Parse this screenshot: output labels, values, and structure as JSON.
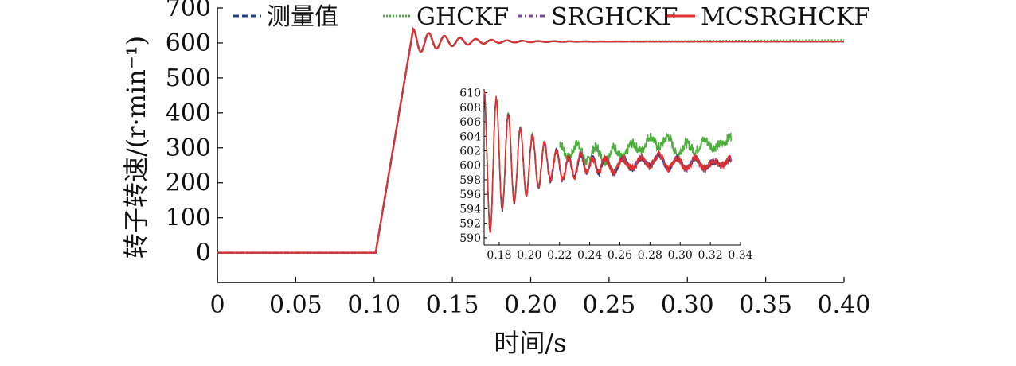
{
  "chart_data": {
    "type": "line",
    "xlabel": "时间/s",
    "ylabel": "转子转速/(r·min⁻¹)",
    "xlim": [
      0,
      0.4
    ],
    "ylim": [
      -85,
      700
    ],
    "x_ticks": [
      "0",
      "0.05",
      "0.10",
      "0.15",
      "0.20",
      "0.25",
      "0.30",
      "0.35",
      "0.40"
    ],
    "x_tick_values": [
      0,
      0.05,
      0.1,
      0.15,
      0.2,
      0.25,
      0.3,
      0.35,
      0.4
    ],
    "y_ticks": [
      "0",
      "100",
      "200",
      "300",
      "400",
      "500",
      "600",
      "700"
    ],
    "y_tick_values": [
      0,
      100,
      200,
      300,
      400,
      500,
      600,
      700
    ],
    "legend_position": "top",
    "grid": false,
    "series": [
      {
        "name": "测量值",
        "color": "#1f3f8f",
        "style": "dashed"
      },
      {
        "name": "GHCKF",
        "color": "#4caf3c",
        "style": "dotted"
      },
      {
        "name": "SRGHCKF",
        "color": "#7a4a9a",
        "style": "dashdot"
      },
      {
        "name": "MCSRGHCKF",
        "color": "#e03030",
        "style": "solid"
      }
    ],
    "main_curve": {
      "x": [
        0,
        0.05,
        0.1,
        0.101,
        0.125,
        0.13,
        0.135,
        0.14,
        0.145,
        0.15,
        0.16,
        0.17,
        0.18,
        0.2,
        0.25,
        0.3,
        0.35,
        0.4
      ],
      "y": [
        0,
        0,
        0,
        0,
        640,
        610,
        628,
        607,
        620,
        604,
        614,
        603,
        610,
        603,
        604,
        603,
        604,
        604
      ],
      "ghckf_end_y": 608
    },
    "inset": {
      "xlim": [
        0.17,
        0.34
      ],
      "ylim": [
        589,
        610.5
      ],
      "x_ticks": [
        "0.18",
        "0.20",
        "0.22",
        "0.24",
        "0.26",
        "0.28",
        "0.30",
        "0.32",
        "0.34"
      ],
      "x_tick_values": [
        0.18,
        0.2,
        0.22,
        0.24,
        0.26,
        0.28,
        0.3,
        0.32,
        0.34
      ],
      "y_ticks": [
        "590",
        "592",
        "594",
        "596",
        "598",
        "600",
        "602",
        "604",
        "606",
        "608",
        "610"
      ],
      "y_tick_values": [
        590,
        592,
        594,
        596,
        598,
        600,
        602,
        604,
        606,
        608,
        610
      ],
      "filtered_curve": {
        "x": [
          0.17,
          0.174,
          0.178,
          0.182,
          0.186,
          0.19,
          0.194,
          0.198,
          0.202,
          0.206,
          0.21,
          0.214,
          0.218,
          0.222,
          0.226,
          0.23,
          0.234,
          0.238,
          0.242,
          0.246,
          0.25,
          0.256,
          0.262,
          0.268,
          0.274,
          0.28,
          0.286,
          0.292,
          0.298,
          0.304,
          0.31,
          0.316,
          0.322,
          0.328,
          0.334
        ],
        "y": [
          610,
          591,
          609,
          594,
          607,
          595,
          605,
          596,
          604,
          597,
          603,
          598,
          602,
          598,
          601,
          598.5,
          601.5,
          599,
          601,
          599,
          601,
          599,
          601,
          599.5,
          601,
          600,
          601.5,
          599.5,
          601,
          599.5,
          601,
          599.5,
          600.5,
          600,
          601
        ]
      },
      "ghckf_curve": {
        "x": [
          0.22,
          0.226,
          0.232,
          0.238,
          0.244,
          0.25,
          0.256,
          0.262,
          0.268,
          0.274,
          0.28,
          0.286,
          0.292,
          0.298,
          0.304,
          0.31,
          0.316,
          0.322,
          0.328,
          0.334
        ],
        "y": [
          603,
          601,
          603,
          600.5,
          602.5,
          600.5,
          602.5,
          601,
          603,
          602,
          604,
          602.5,
          604,
          601.5,
          603,
          602,
          603.5,
          602.5,
          603,
          604
        ]
      }
    }
  }
}
